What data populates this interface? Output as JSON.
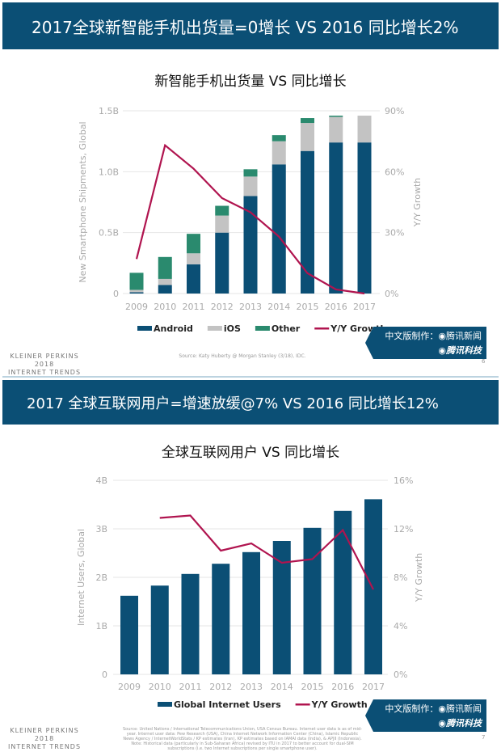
{
  "slide1": {
    "header": "2017全球新智能手机出货量=0增长 VS 2016 同比增长2%",
    "badge_line1": "中文版制作：◉腾讯新闻",
    "badge_line2": "◉腾讯科技",
    "footer_brand": [
      "KLEINER PERKINS",
      "2018",
      "INTERNET TRENDS"
    ],
    "source": "Source: Katy Huberty @ Morgan Stanley (3/18), IDC.",
    "page_number": "6"
  },
  "slide2": {
    "header": "2017 全球互联网用户=增速放缓@7% VS 2016 同比增长12%",
    "badge_line1": "中文版制作：◉腾讯新闻",
    "badge_line2": "◉腾讯科技",
    "footer_brand": [
      "KLEINER PERKINS",
      "2018",
      "INTERNET TRENDS"
    ],
    "source": "Source: United Nations / International Telecommunications Union, USA Census Bureau. Internet user data is as of mid-year. Internet user data: Pew Research (USA), China Internet Network Information Center (China), Islamic Republic News Agency / InternetWorldStats / KP estimates (Iran), KP estimates based on IAMAI data (India), & APJII (Indonesia). Note: Historical data (particularly in Sub-Saharan Africa) revised by ITU in 2017 to better account for dual-SIM subscriptions (i.e. two Internet subscriptions per single smartphone user).",
    "page_number": "7"
  },
  "chart_data": [
    {
      "type": "bar",
      "stacked": true,
      "title": "新智能手机出货量  VS  同比增长",
      "categories": [
        "2009",
        "2010",
        "2011",
        "2012",
        "2013",
        "2014",
        "2015",
        "2016",
        "2017"
      ],
      "ylabel": "New Smartphone Shipments, Global",
      "ylabel_right": "Y/Y Growth",
      "yticks": [
        "0",
        "0.5B",
        "1.0B",
        "1.5B"
      ],
      "yticks_right": [
        "0%",
        "30%",
        "60%",
        "90%"
      ],
      "ylim": [
        0,
        1.5
      ],
      "ylim_right": [
        0,
        90
      ],
      "unit": "B",
      "series": [
        {
          "name": "Android",
          "color": "#0b4f75",
          "values": [
            0.01,
            0.07,
            0.24,
            0.5,
            0.8,
            1.06,
            1.17,
            1.24,
            1.24
          ]
        },
        {
          "name": "iOS",
          "color": "#c3c3c3",
          "values": [
            0.02,
            0.05,
            0.09,
            0.14,
            0.16,
            0.19,
            0.23,
            0.21,
            0.22
          ]
        },
        {
          "name": "Other",
          "color": "#2a8a6e",
          "values": [
            0.14,
            0.18,
            0.16,
            0.08,
            0.06,
            0.05,
            0.04,
            0.01,
            0.0
          ]
        }
      ],
      "line": {
        "name": "Y/Y Growth",
        "color": "#b0144f",
        "axis": "right",
        "values": [
          17,
          73,
          61.5,
          47,
          40,
          28,
          10,
          2,
          0
        ]
      },
      "grid": true,
      "legend": "bottom"
    },
    {
      "type": "bar",
      "title": "全球互联网用户 VS 同比增长",
      "categories": [
        "2009",
        "2010",
        "2011",
        "2012",
        "2013",
        "2014",
        "2015",
        "2016",
        "2017"
      ],
      "ylabel": "Internet Users, Global",
      "ylabel_right": "Y/Y Growth",
      "yticks": [
        "0",
        "1B",
        "2B",
        "3B",
        "4B"
      ],
      "yticks_right": [
        "0%",
        "4%",
        "8%",
        "12%",
        "16%"
      ],
      "ylim": [
        0,
        4
      ],
      "ylim_right": [
        0,
        16
      ],
      "unit": "B",
      "series": [
        {
          "name": "Global Internet Users",
          "color": "#0b4f75",
          "values": [
            1.62,
            1.83,
            2.07,
            2.28,
            2.52,
            2.75,
            3.02,
            3.37,
            3.61
          ]
        }
      ],
      "line": {
        "name": "Y/Y Growth",
        "color": "#b0144f",
        "axis": "right",
        "values": [
          null,
          12.9,
          13.1,
          10.2,
          10.8,
          9.2,
          9.5,
          11.9,
          7.0
        ]
      },
      "grid": true,
      "legend": "bottom"
    }
  ]
}
